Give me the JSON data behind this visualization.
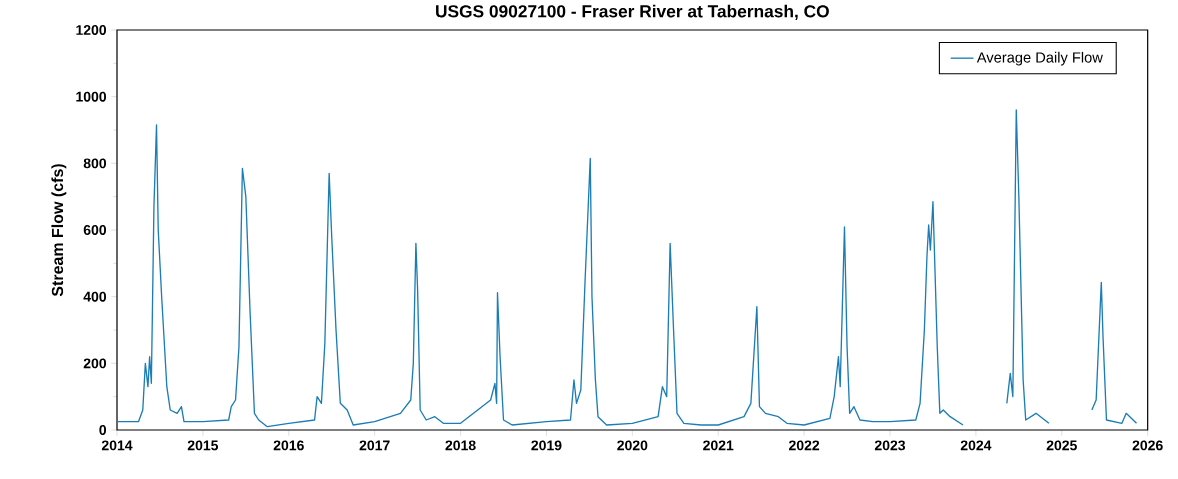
{
  "chart_data": {
    "type": "line",
    "title": "USGS 09027100 - Fraser River at Tabernash, CO",
    "ylabel": "Stream Flow (cfs)",
    "xlim": [
      2014,
      2026
    ],
    "xticks": [
      2014,
      2015,
      2016,
      2017,
      2018,
      2019,
      2020,
      2021,
      2022,
      2023,
      2024,
      2025,
      2026
    ],
    "ylim": [
      0,
      1200
    ],
    "yticks": [
      0,
      200,
      400,
      600,
      800,
      1000,
      1200
    ],
    "legend": "top right",
    "x": [
      2014.0,
      2014.25,
      2014.3,
      2014.33,
      2014.36,
      2014.38,
      2014.4,
      2014.43,
      2014.46,
      2014.48,
      2014.52,
      2014.58,
      2014.62,
      2014.7,
      2014.75,
      2014.78,
      2015.0,
      2015.3,
      2015.33,
      2015.38,
      2015.42,
      2015.46,
      2015.5,
      2015.55,
      2015.6,
      2015.65,
      2015.75,
      2016.0,
      2016.3,
      2016.33,
      2016.38,
      2016.42,
      2016.47,
      2016.5,
      2016.55,
      2016.6,
      2016.68,
      2016.75,
      2017.0,
      2017.3,
      2017.42,
      2017.45,
      2017.48,
      2017.5,
      2017.53,
      2017.6,
      2017.7,
      2017.8,
      2018.0,
      2018.35,
      2018.4,
      2018.42,
      2018.43,
      2018.46,
      2018.5,
      2018.6,
      2019.0,
      2019.28,
      2019.32,
      2019.35,
      2019.4,
      2019.45,
      2019.51,
      2019.53,
      2019.57,
      2019.6,
      2019.7,
      2020.0,
      2020.3,
      2020.35,
      2020.4,
      2020.44,
      2020.48,
      2020.52,
      2020.6,
      2020.8,
      2021.0,
      2021.3,
      2021.38,
      2021.45,
      2021.48,
      2021.55,
      2021.7,
      2021.8,
      2022.0,
      2022.3,
      2022.35,
      2022.4,
      2022.42,
      2022.47,
      2022.5,
      2022.53,
      2022.58,
      2022.65,
      2022.8,
      2023.0,
      2023.3,
      2023.35,
      2023.4,
      2023.43,
      2023.45,
      2023.47,
      2023.5,
      2023.55,
      2023.58,
      2023.62,
      2023.7,
      2023.85,
      2024.1,
      2024.36,
      2024.4,
      2024.43,
      2024.47,
      2024.5,
      2024.55,
      2024.58,
      2024.7,
      2024.85,
      2025.1,
      2025.35,
      2025.4,
      2025.46,
      2025.48,
      2025.52,
      2025.7,
      2025.75,
      2025.87
    ],
    "series": [
      {
        "name": "Average Daily Flow",
        "color": "#1a7db5",
        "values": [
          25,
          25,
          60,
          200,
          130,
          220,
          140,
          670,
          915,
          600,
          400,
          130,
          60,
          50,
          70,
          25,
          25,
          30,
          70,
          90,
          250,
          785,
          700,
          350,
          50,
          30,
          10,
          20,
          30,
          100,
          80,
          260,
          770,
          580,
          300,
          80,
          60,
          15,
          25,
          50,
          90,
          200,
          560,
          420,
          60,
          30,
          40,
          20,
          20,
          90,
          140,
          80,
          412,
          220,
          30,
          15,
          25,
          30,
          150,
          80,
          120,
          450,
          815,
          400,
          150,
          40,
          15,
          20,
          40,
          130,
          100,
          560,
          300,
          50,
          20,
          15,
          15,
          40,
          80,
          370,
          70,
          50,
          40,
          20,
          15,
          35,
          100,
          220,
          130,
          609,
          250,
          50,
          70,
          30,
          25,
          25,
          30,
          80,
          300,
          520,
          615,
          540,
          685,
          250,
          50,
          60,
          40,
          15,
          null,
          80,
          170,
          100,
          960,
          700,
          150,
          30,
          50,
          20,
          null,
          60,
          90,
          443,
          280,
          30,
          20,
          50,
          20
        ]
      }
    ]
  }
}
